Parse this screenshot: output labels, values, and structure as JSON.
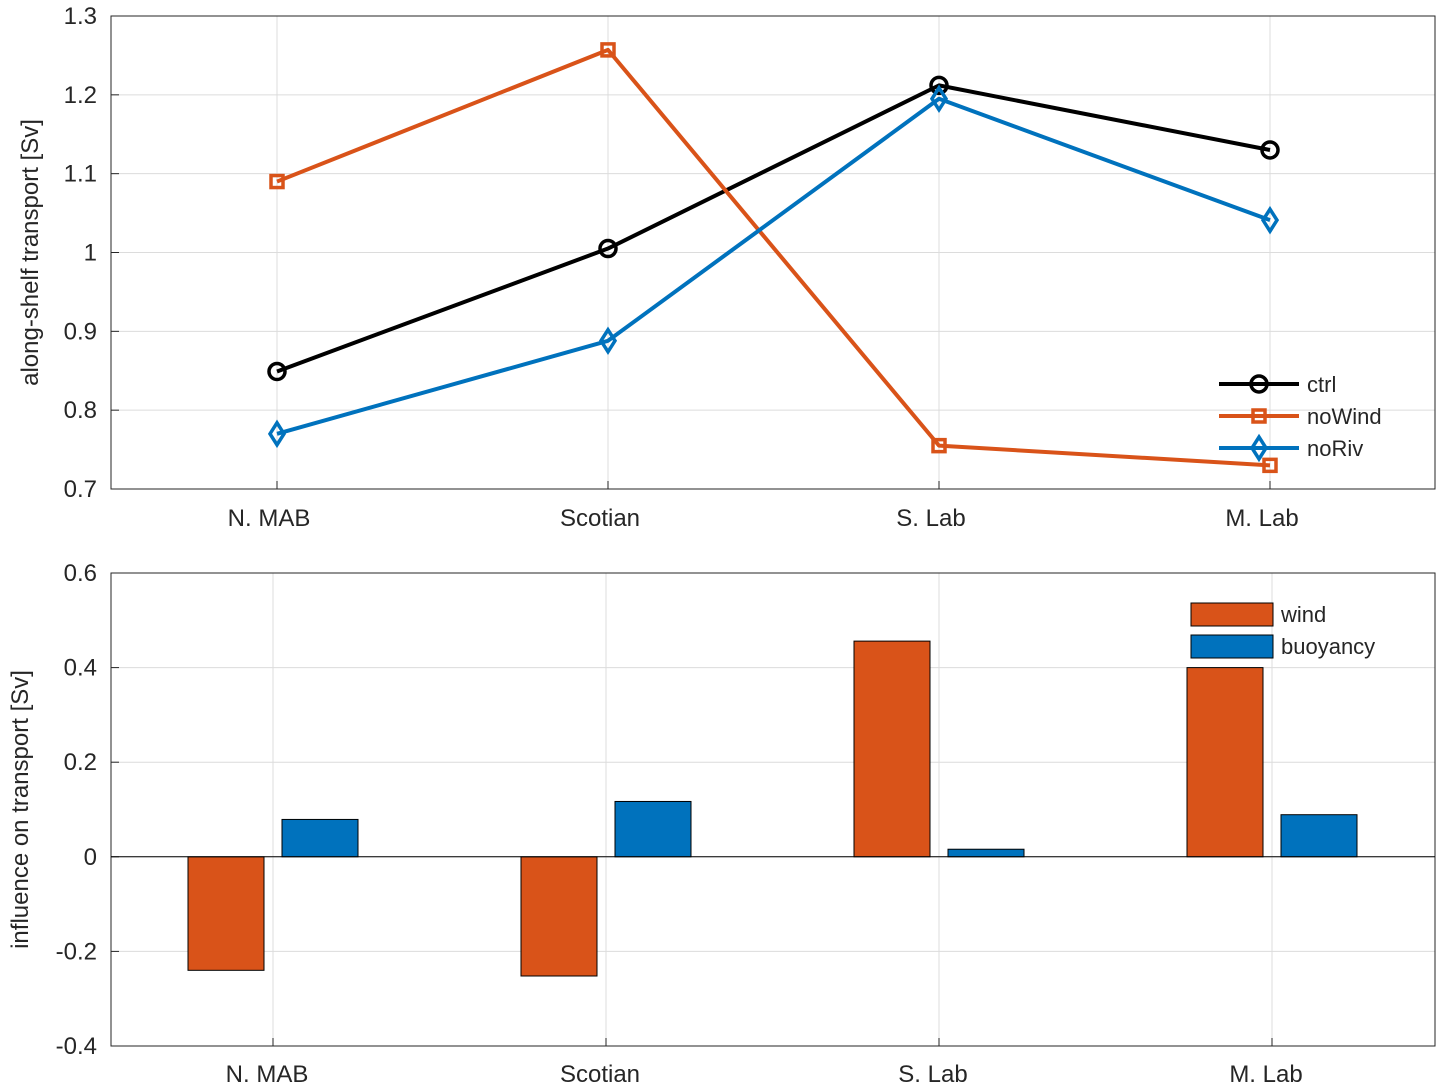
{
  "chart_data": [
    {
      "type": "line",
      "categories": [
        "N. MAB",
        "Scotian",
        "S. Lab",
        "M. Lab"
      ],
      "ylabel": "along-shelf transport [Sv]",
      "ylim": [
        0.7,
        1.3
      ],
      "yticks": [
        0.7,
        0.8,
        0.9,
        1,
        1.1,
        1.2,
        1.3
      ],
      "ytick_labels": [
        "0.7",
        "0.8",
        "0.9",
        "1",
        "1.1",
        "1.2",
        "1.3"
      ],
      "grid": true,
      "legend_position": "lower-right",
      "series": [
        {
          "name": "ctrl",
          "values": [
            0.849,
            1.005,
            1.212,
            1.13
          ],
          "color": "#000000",
          "marker": "circle"
        },
        {
          "name": "noWind",
          "values": [
            1.09,
            1.257,
            0.755,
            0.73
          ],
          "color": "#D95319",
          "marker": "square"
        },
        {
          "name": "noRiv",
          "values": [
            0.77,
            0.888,
            1.195,
            1.041
          ],
          "color": "#0072BD",
          "marker": "diamond"
        }
      ]
    },
    {
      "type": "bar",
      "categories": [
        "N. MAB",
        "Scotian",
        "S. Lab",
        "M. Lab"
      ],
      "ylabel": "influence on transport [Sv]",
      "ylim": [
        -0.4,
        0.6
      ],
      "yticks": [
        -0.4,
        -0.2,
        0,
        0.2,
        0.4,
        0.6
      ],
      "ytick_labels": [
        "-0.4",
        "-0.2",
        "0",
        "0.2",
        "0.4",
        "0.6"
      ],
      "grid": true,
      "legend_position": "top-right",
      "series": [
        {
          "name": "wind",
          "values": [
            -0.24,
            -0.252,
            0.456,
            0.4
          ],
          "color": "#D95319"
        },
        {
          "name": "buoyancy",
          "values": [
            0.079,
            0.117,
            0.016,
            0.089
          ],
          "color": "#0072BD"
        }
      ]
    }
  ]
}
